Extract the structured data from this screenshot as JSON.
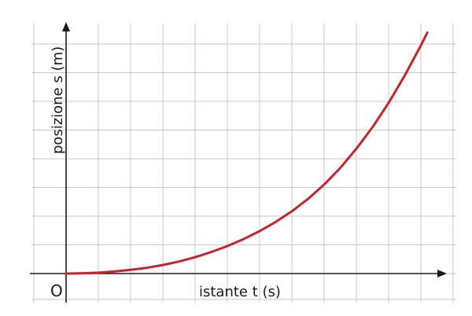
{
  "chart_data": {
    "type": "line",
    "xlabel": "istante t (s)",
    "ylabel": "posizione s (m)",
    "origin_label": "O",
    "grid": true,
    "ticks_labeled": false,
    "xlim": [
      0,
      12
    ],
    "ylim": [
      0,
      8.5
    ],
    "series": [
      {
        "color": "#c0262c",
        "x": [
          0,
          0.5,
          1,
          1.5,
          2,
          2.5,
          3,
          3.5,
          4,
          4.5,
          5,
          5.5,
          6,
          6.5,
          7,
          7.5,
          8,
          8.5,
          9,
          9.5,
          10,
          10.5,
          11,
          11.2
        ],
        "y": [
          0,
          0.01,
          0.03,
          0.07,
          0.13,
          0.2,
          0.3,
          0.42,
          0.57,
          0.75,
          0.96,
          1.2,
          1.48,
          1.8,
          2.17,
          2.6,
          3.1,
          3.68,
          4.35,
          5.1,
          5.95,
          6.9,
          7.95,
          8.4
        ]
      }
    ]
  }
}
